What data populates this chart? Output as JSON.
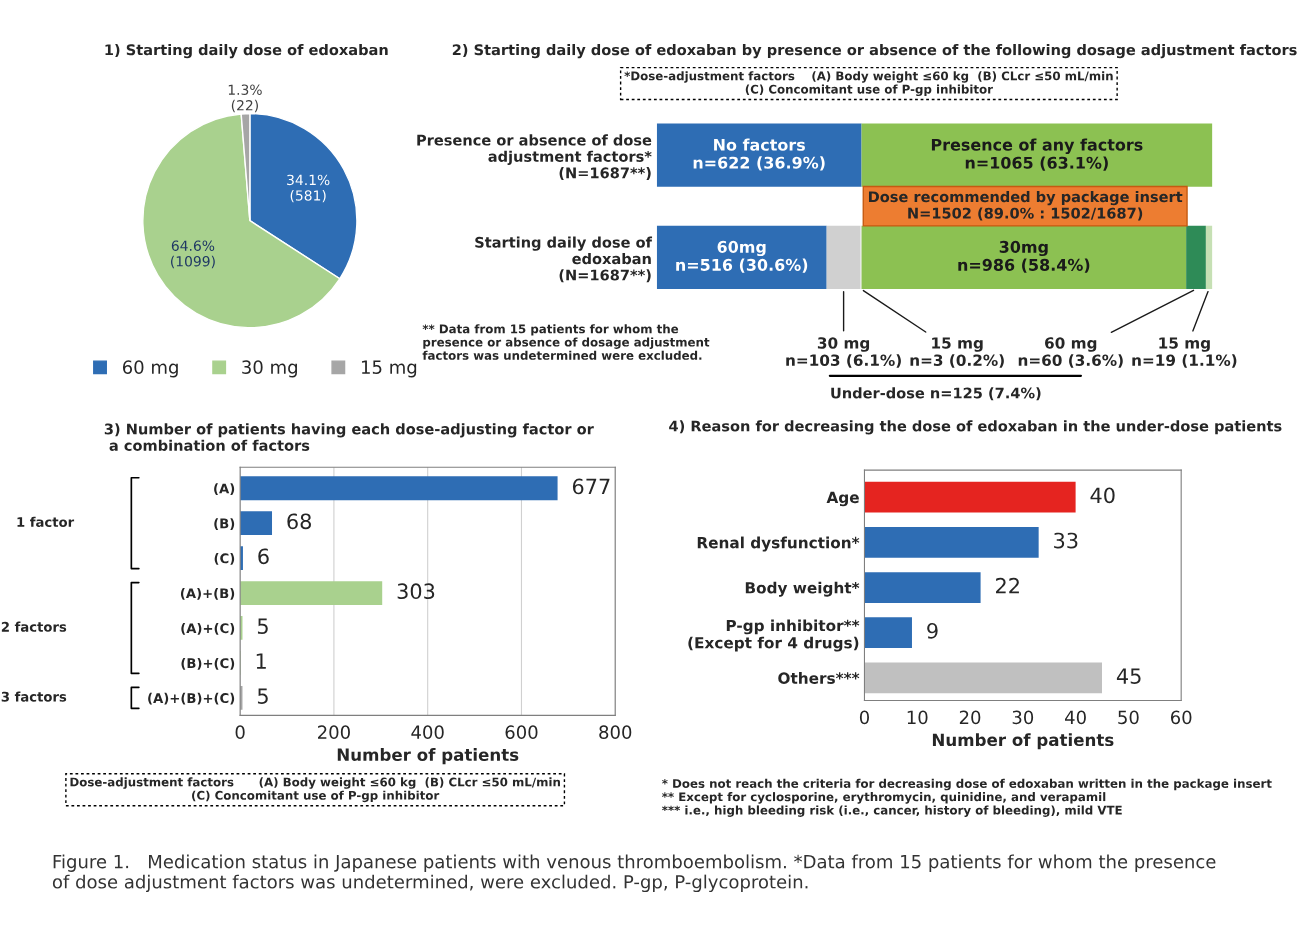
{
  "chart_data": [
    {
      "type": "pie",
      "title": "1) Starting daily dose of edoxaban",
      "categories": [
        "60 mg",
        "30 mg",
        "15 mg"
      ],
      "values": [
        581,
        1099,
        22
      ],
      "colors": [
        "#2e6db4",
        "#a9d18e",
        "#a6a6a6"
      ],
      "value_labels": [
        "34.1%\n(581)",
        "64.6%\n(1099)",
        "1.3%\n(22)"
      ],
      "legend": "bottom"
    },
    {
      "type": "bar",
      "orientation": "horizontal",
      "stacked": true,
      "title": "2) Starting daily dose of edoxaban by presence or absence of the following dosage adjustment factors",
      "categories": [
        "Presence or absence of dose\nadjustment factors*\n(N=1687**)",
        "Starting daily dose of\nedoxaban\n(N=1687**)"
      ],
      "tick_labels": "y",
      "series": [
        {
          "colors": [
            "#2e6db4",
            "#2e6db4"
          ],
          "values": [
            622,
            516
          ],
          "value_labels": [
            "No factors\nn=622 (36.9%)",
            "60mg\nn=516 (30.6%)"
          ]
        },
        {
          "colors": [
            "#8cc152",
            "#d0d0d0"
          ],
          "values": [
            1065,
            103
          ],
          "value_labels": [
            "Presence of any factors\nn=1065 (63.1%)",
            "30 mg\nn=103 (6.1%)"
          ]
        },
        {
          "colors": [
            null,
            "#e8e8e8"
          ],
          "values": [
            null,
            3
          ],
          "value_labels": [
            null,
            "15 mg\nn=3 (0.2%)"
          ]
        },
        {
          "colors": [
            null,
            "#8cc152"
          ],
          "values": [
            null,
            986
          ],
          "value_labels": [
            null,
            "30mg\nn=986 (58.4%)"
          ]
        },
        {
          "colors": [
            null,
            "#2e8b57"
          ],
          "values": [
            null,
            60
          ],
          "value_labels": [
            null,
            "60 mg\nn=60 (3.6%)"
          ]
        },
        {
          "colors": [
            null,
            "#c6e0b4"
          ],
          "values": [
            null,
            19
          ],
          "value_labels": [
            null,
            "15 mg\nn=19 (1.1%)"
          ]
        }
      ],
      "annotations": [
        "*Dose-adjustment factors    (A) Body weight ≤60 kg  (B) CLcr ≤50 mL/min\n(C) Concomitant use of P-gp inhibitor",
        "Dose recommended by package insert\nN=1502 (89.0% : 1502/1687)",
        "** Data from 15 patients for whom the\npresence or absence of dosage adjustment\nfactors was undetermined were excluded.",
        "Under-dose n=125 (7.4%)"
      ]
    },
    {
      "type": "bar",
      "orientation": "horizontal",
      "title": "3) Number of patients having each dose-adjusting factor or\n a combination of factors",
      "categories": [
        "(A)",
        "(B)",
        "(C)",
        "(A)+(B)",
        "(A)+(C)",
        "(B)+(C)",
        "(A)+(B)+(C)"
      ],
      "values": [
        677,
        68,
        6,
        303,
        5,
        1,
        5
      ],
      "colors": [
        "#2e6db4",
        "#2e6db4",
        "#2e6db4",
        "#a9d18e",
        "#a9d18e",
        "#a9d18e",
        "#a6a6a6"
      ],
      "xlim": [
        0,
        800
      ],
      "xticks": [
        0,
        200,
        400,
        600,
        800
      ],
      "xlabel": "Number of patients",
      "grid": "x",
      "data_labels": true,
      "annotations": [
        "1 factor",
        "2 factors",
        "3 factors",
        "Dose-adjustment factors      (A) Body weight ≤60 kg  (B) CLcr ≤50 mL/min\n(C) Concomitant use of P-gp inhibitor"
      ]
    },
    {
      "type": "bar",
      "orientation": "horizontal",
      "title": "4) Reason for decreasing the dose of edoxaban in the under-dose patients",
      "categories": [
        "Age",
        "Renal dysfunction*",
        "Body weight*",
        "P-gp inhibitor**\n(Except for 4 drugs)",
        "Others***"
      ],
      "values": [
        40,
        33,
        22,
        9,
        45
      ],
      "colors": [
        "#e52420",
        "#2e6db4",
        "#2e6db4",
        "#2e6db4",
        "#c0c0c0"
      ],
      "xlim": [
        0,
        60
      ],
      "xticks": [
        0,
        10,
        20,
        30,
        40,
        50,
        60
      ],
      "xlabel": "Number of patients",
      "data_labels": true,
      "annotations": [
        "* Does not reach the criteria for decreasing dose of edoxaban written in the package insert\n** Except for cyclosporine, erythromycin, quinidine, and verapamil\n*** i.e., high bleeding risk (i.e., cancer, history of bleeding), mild VTE",
        "Figure 1.   Medication status in Japanese patients with venous thromboembolism. *Data from 15 patients for whom the presence\nof dose adjustment factors was undetermined, were excluded. P-gp, P-glycoprotein."
      ]
    }
  ]
}
